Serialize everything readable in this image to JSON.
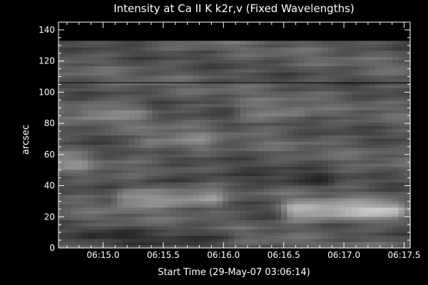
{
  "chart_data": {
    "type": "heatmap",
    "title": "Intensity at Ca II K k2r,v (Fixed Wavelengths)",
    "xlabel": "Start Time (29-May-07 03:06:14)",
    "ylabel": "arcsec",
    "x_ticks": [
      "06:15.0",
      "06:15.5",
      "06:16.0",
      "06:16.5",
      "06:17.0",
      "06:17.5"
    ],
    "y_ticks": [
      0,
      20,
      40,
      60,
      80,
      100,
      120,
      140
    ],
    "ylim": [
      0,
      145
    ],
    "x_tick_values_min": [
      15.0,
      15.5,
      16.0,
      16.5,
      17.0,
      17.5
    ],
    "xlim_min": [
      14.63,
      17.55
    ],
    "data_ylim": [
      0,
      133
    ],
    "colormap": "grayscale",
    "dark_line_y": 106,
    "bright_features": [
      {
        "x_min": [
          15.2,
          15.9
        ],
        "y": 32,
        "intensity": "high"
      },
      {
        "x_min": [
          16.6,
          17.4
        ],
        "y": 24,
        "intensity": "very high"
      },
      {
        "x_min": [
          15.4,
          15.8
        ],
        "y": 68,
        "intensity": "medium"
      },
      {
        "x_min": [
          16.2,
          16.6
        ],
        "y": 86,
        "intensity": "medium"
      },
      {
        "x_min": [
          14.9,
          15.3
        ],
        "y": 88,
        "intensity": "medium"
      },
      {
        "x_min": [
          14.6,
          14.8
        ],
        "y": 55,
        "intensity": "medium"
      }
    ],
    "dark_features": [
      {
        "x_min": [
          15.4,
          16.8
        ],
        "y": 44,
        "intensity": "low"
      },
      {
        "x_min": [
          14.9,
          16.0
        ],
        "y": 8,
        "intensity": "low"
      }
    ]
  }
}
